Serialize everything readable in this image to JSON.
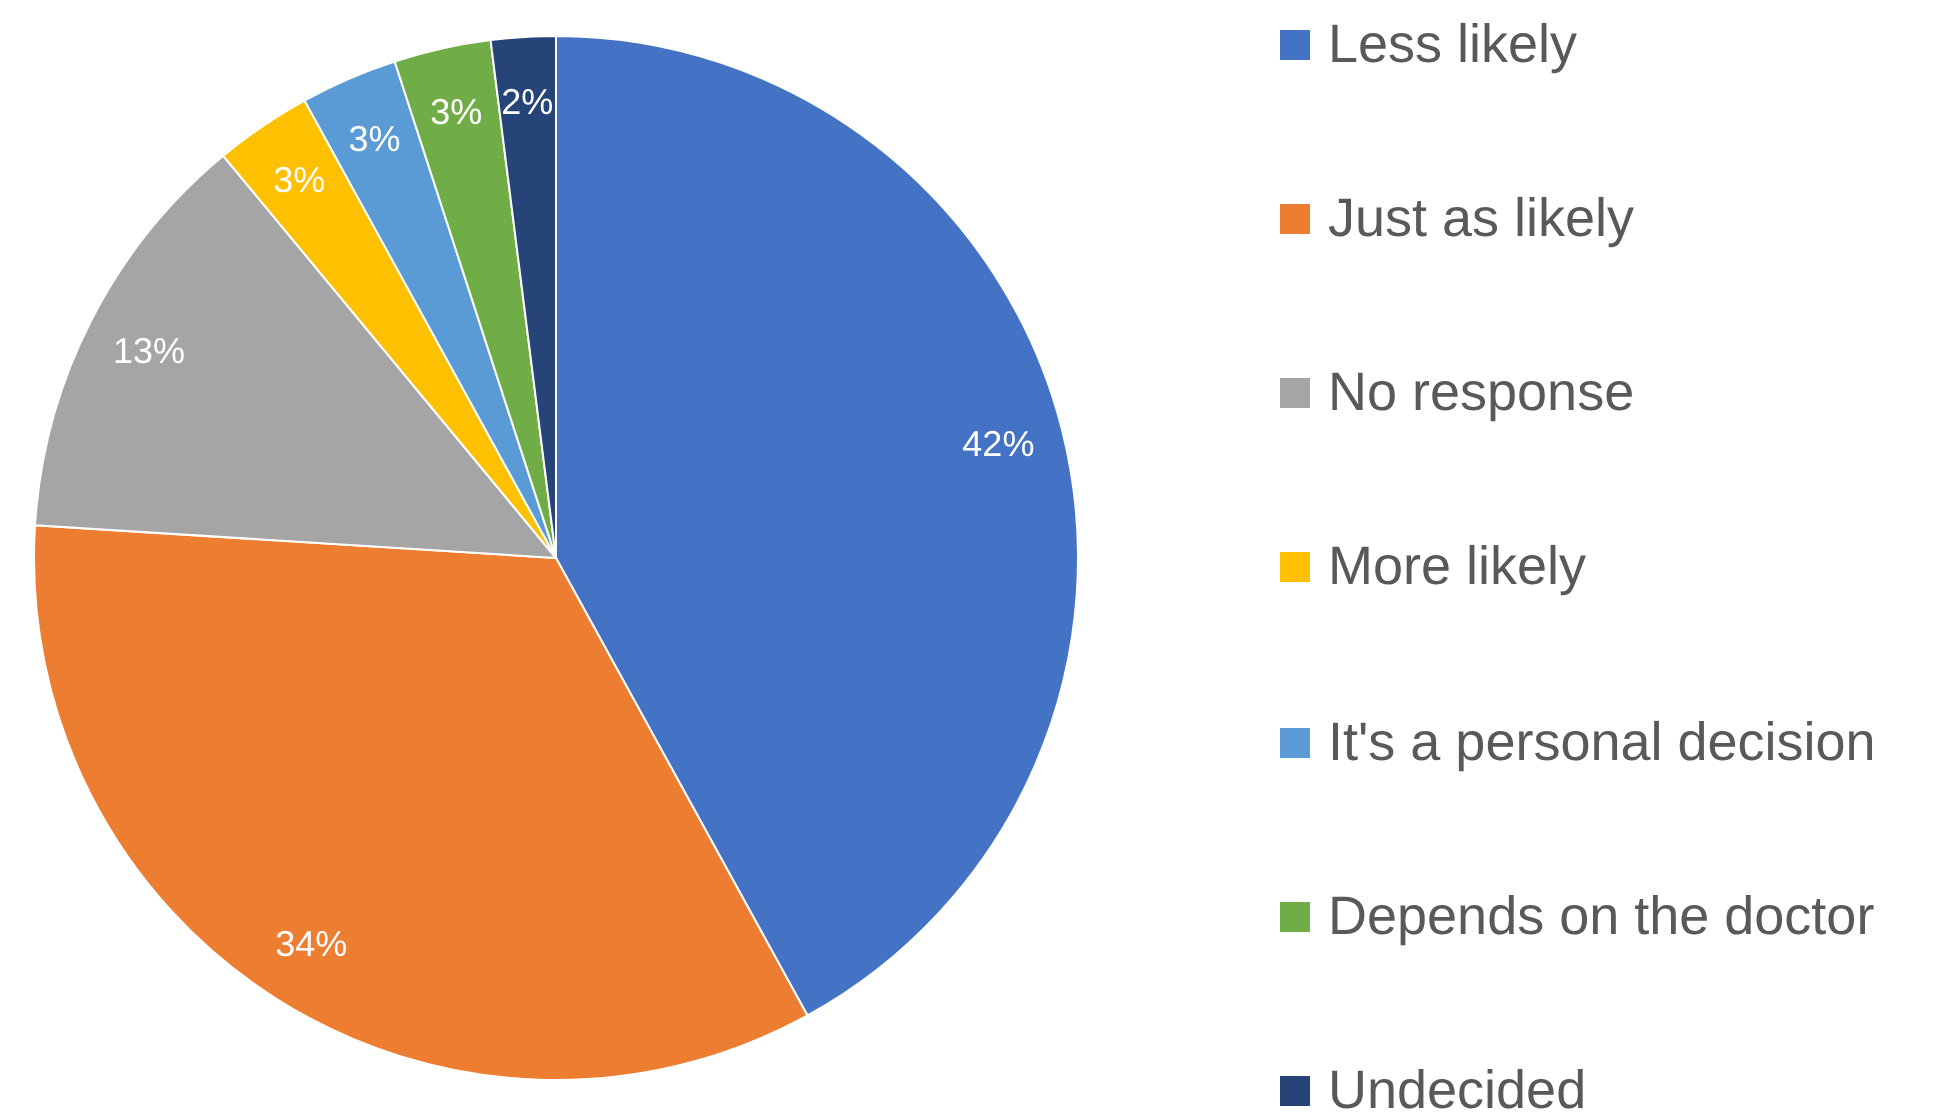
{
  "chart_data": {
    "type": "pie",
    "categories": [
      "Less likely",
      "Just as likely",
      "No response",
      "More likely",
      "It's a personal decision",
      "Depends on the doctor",
      "Undecided"
    ],
    "values": [
      42,
      34,
      13,
      3,
      3,
      3,
      2
    ],
    "colors": [
      "#4472c4",
      "#ed7d31",
      "#a5a5a5",
      "#ffc000",
      "#5b9bd5",
      "#70ad47",
      "#264478"
    ],
    "value_labels": [
      "42%",
      "34%",
      "13%",
      "3%",
      "3%",
      "3%",
      "2%"
    ],
    "legend": "right"
  }
}
